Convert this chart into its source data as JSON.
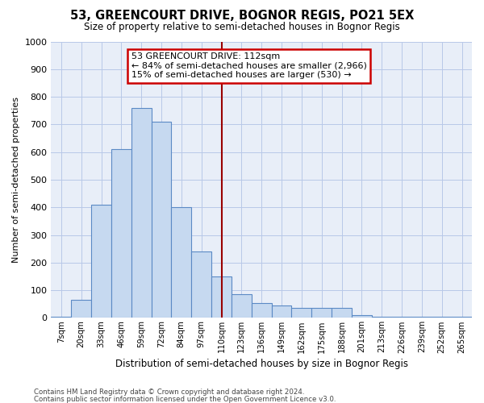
{
  "title": "53, GREENCOURT DRIVE, BOGNOR REGIS, PO21 5EX",
  "subtitle": "Size of property relative to semi-detached houses in Bognor Regis",
  "xlabel": "Distribution of semi-detached houses by size in Bognor Regis",
  "ylabel": "Number of semi-detached properties",
  "footnote1": "Contains HM Land Registry data © Crown copyright and database right 2024.",
  "footnote2": "Contains public sector information licensed under the Open Government Licence v3.0.",
  "bin_labels": [
    "7sqm",
    "20sqm",
    "33sqm",
    "46sqm",
    "59sqm",
    "72sqm",
    "84sqm",
    "97sqm",
    "110sqm",
    "123sqm",
    "136sqm",
    "149sqm",
    "162sqm",
    "175sqm",
    "188sqm",
    "201sqm",
    "213sqm",
    "226sqm",
    "239sqm",
    "252sqm",
    "265sqm"
  ],
  "bar_heights": [
    5,
    65,
    410,
    610,
    760,
    710,
    400,
    240,
    150,
    85,
    55,
    45,
    35,
    35,
    35,
    10,
    5,
    5,
    5,
    5,
    5
  ],
  "property_line_x": 8,
  "property_sqm": 112,
  "pct_smaller": 84,
  "n_smaller": 2966,
  "pct_larger": 15,
  "n_larger": 530,
  "bar_color": "#c6d9f0",
  "bar_edge_color": "#5b8ac5",
  "line_color": "#990000",
  "grid_color": "#b8c8e8",
  "bg_color": "#e8eef8",
  "annotation_box_edge": "#cc0000",
  "ylim": [
    0,
    1000
  ],
  "bin_width": 1
}
